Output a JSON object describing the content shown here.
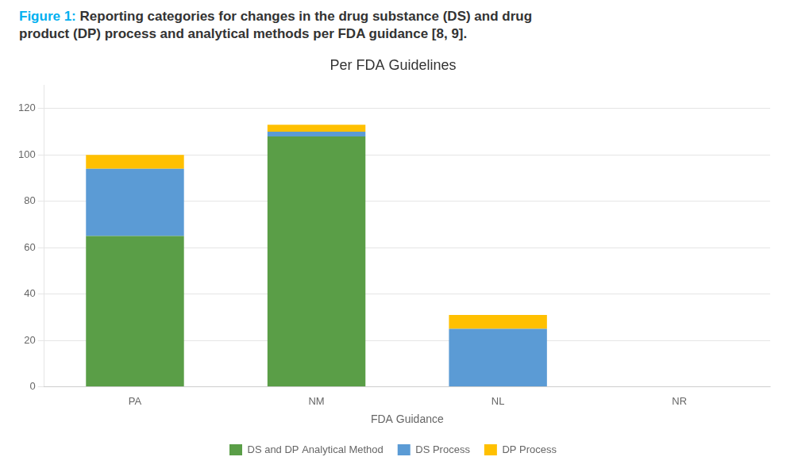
{
  "chart_data": {
    "type": "bar",
    "stacked": true,
    "title": "Per FDA Guidelines",
    "annotations": [
      "Figure 1:",
      "Reporting categories for changes in the drug substance (DS) and drug",
      "product (DP) process and analytical methods per FDA guidance [8, 9]."
    ],
    "xlabel": "FDA Guidance",
    "categories": [
      "PA",
      "NM",
      "NL",
      "NR"
    ],
    "series": [
      {
        "name": "DS and DP Analytical Method",
        "color": "#5a9e47",
        "values": [
          65,
          108,
          0,
          0
        ]
      },
      {
        "name": "DS Process",
        "color": "#5b9bd5",
        "values": [
          29,
          2,
          25,
          0
        ]
      },
      {
        "name": "DP Process",
        "color": "#ffc000",
        "values": [
          6,
          3,
          6,
          0
        ]
      }
    ],
    "ylim": [
      0,
      130
    ],
    "yticks": [
      0,
      20,
      40,
      60,
      80,
      100,
      120
    ],
    "grid": true,
    "legend": "bottom"
  }
}
